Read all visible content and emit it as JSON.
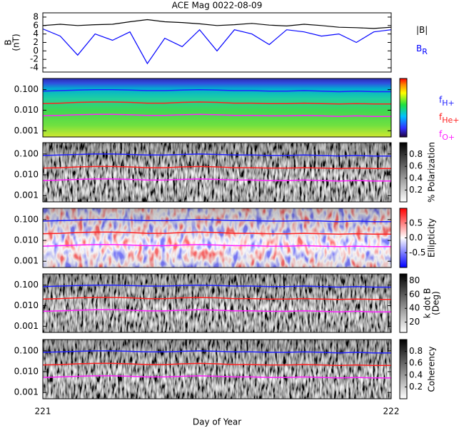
{
  "chart_data": [
    {
      "type": "line",
      "title": "ACE Mag 0022-08-09",
      "ylabel": [
        "B",
        "(nT)"
      ],
      "xlim": [
        221,
        222
      ],
      "ylim": [
        -5,
        9
      ],
      "yticks": [
        -4,
        -2,
        0,
        2,
        4,
        6,
        8
      ],
      "x": [
        221,
        221.05,
        221.1,
        221.15,
        221.2,
        221.25,
        221.3,
        221.35,
        221.4,
        221.45,
        221.5,
        221.55,
        221.6,
        221.65,
        221.7,
        221.75,
        221.8,
        221.85,
        221.9,
        221.95,
        222
      ],
      "series": [
        {
          "name": "|B|",
          "color": "#000000",
          "values": [
            6.0,
            6.3,
            6.0,
            6.2,
            6.3,
            6.9,
            7.4,
            6.9,
            6.7,
            6.4,
            6.0,
            6.2,
            6.5,
            6.1,
            5.9,
            6.3,
            6.0,
            5.6,
            5.5,
            5.3,
            5.6
          ]
        },
        {
          "name": "B",
          "name_sub": "R",
          "color": "#0000ff",
          "values": [
            5.2,
            3.5,
            -1.0,
            4.0,
            2.5,
            4.5,
            -3.0,
            3.0,
            1.0,
            5.0,
            0.0,
            5.0,
            4.0,
            1.5,
            5.0,
            4.5,
            3.5,
            4.0,
            2.0,
            4.5,
            5.0
          ]
        }
      ]
    },
    {
      "type": "spectrogram",
      "colormap": "rainbow",
      "log_y": true,
      "xlim": [
        221,
        222
      ],
      "ylim": [
        0.0005,
        0.35
      ],
      "yticks": [
        0.001,
        {
          "value": 0.01,
          "label": "0.010"
        },
        {
          "value": 0.1,
          "label": "0.100"
        }
      ],
      "x": [
        221,
        221.05,
        221.1,
        221.15,
        221.2,
        221.25,
        221.3,
        221.35,
        221.4,
        221.45,
        221.5,
        221.55,
        221.6,
        221.65,
        221.7,
        221.75,
        221.8,
        221.85,
        221.9,
        221.95,
        222
      ],
      "series": [
        {
          "name": "f",
          "name_sub": "H+",
          "color": "#2020ff",
          "values": [
            0.085,
            0.09,
            0.095,
            0.1,
            0.1,
            0.095,
            0.09,
            0.09,
            0.095,
            0.1,
            0.095,
            0.09,
            0.09,
            0.085,
            0.085,
            0.09,
            0.085,
            0.08,
            0.085,
            0.08,
            0.08
          ]
        },
        {
          "name": "f",
          "name_sub": "He+",
          "color": "#ff2020",
          "values": [
            0.021,
            0.022,
            0.024,
            0.025,
            0.025,
            0.024,
            0.022,
            0.022,
            0.024,
            0.025,
            0.024,
            0.022,
            0.022,
            0.021,
            0.021,
            0.022,
            0.021,
            0.02,
            0.021,
            0.02,
            0.02
          ]
        },
        {
          "name": "f",
          "name_sub": "O+",
          "color": "#ff20ff",
          "values": [
            0.0053,
            0.0056,
            0.006,
            0.0063,
            0.0063,
            0.006,
            0.0056,
            0.0056,
            0.006,
            0.0063,
            0.006,
            0.0056,
            0.0056,
            0.0053,
            0.0053,
            0.0056,
            0.0053,
            0.005,
            0.0053,
            0.005,
            0.005
          ]
        }
      ]
    },
    {
      "type": "spectrogram",
      "colormap": "gray",
      "log_y": true,
      "xlim": [
        221,
        222
      ],
      "ylim": [
        0.0005,
        0.35
      ],
      "yticks": [
        0.001,
        {
          "value": 0.01,
          "label": "0.010"
        },
        {
          "value": 0.1,
          "label": "0.100"
        }
      ],
      "zlabel": "% Polarization",
      "zlim": [
        0,
        1
      ],
      "zticks": [
        0.2,
        0.4,
        0.6,
        0.8
      ],
      "x": [
        221,
        221.05,
        221.1,
        221.15,
        221.2,
        221.25,
        221.3,
        221.35,
        221.4,
        221.45,
        221.5,
        221.55,
        221.6,
        221.65,
        221.7,
        221.75,
        221.8,
        221.85,
        221.9,
        221.95,
        222
      ],
      "series": [
        {
          "color": "#2020ff",
          "values": [
            0.085,
            0.09,
            0.095,
            0.1,
            0.1,
            0.095,
            0.09,
            0.09,
            0.095,
            0.1,
            0.095,
            0.09,
            0.09,
            0.085,
            0.085,
            0.09,
            0.085,
            0.08,
            0.085,
            0.08,
            0.08
          ]
        },
        {
          "color": "#ff2020",
          "values": [
            0.021,
            0.022,
            0.024,
            0.025,
            0.025,
            0.024,
            0.022,
            0.022,
            0.024,
            0.025,
            0.024,
            0.022,
            0.022,
            0.021,
            0.021,
            0.022,
            0.021,
            0.02,
            0.021,
            0.02,
            0.02
          ]
        },
        {
          "color": "#ff20ff",
          "values": [
            0.0053,
            0.0056,
            0.006,
            0.0063,
            0.0063,
            0.006,
            0.0056,
            0.0056,
            0.006,
            0.0063,
            0.006,
            0.0056,
            0.0056,
            0.0053,
            0.0053,
            0.0056,
            0.0053,
            0.005,
            0.0053,
            0.005,
            0.005
          ]
        }
      ]
    },
    {
      "type": "spectrogram",
      "colormap": "bwr",
      "log_y": true,
      "xlim": [
        221,
        222
      ],
      "ylim": [
        0.0005,
        0.35
      ],
      "yticks": [
        0.001,
        {
          "value": 0.01,
          "label": "0.010"
        },
        {
          "value": 0.1,
          "label": "0.100"
        }
      ],
      "zlabel": "Ellipticity",
      "zlim": [
        -1,
        1
      ],
      "zticks": [
        -0.5,
        {
          "value": 0,
          "label": "0.0"
        },
        0.5
      ],
      "x": [
        221,
        221.05,
        221.1,
        221.15,
        221.2,
        221.25,
        221.3,
        221.35,
        221.4,
        221.45,
        221.5,
        221.55,
        221.6,
        221.65,
        221.7,
        221.75,
        221.8,
        221.85,
        221.9,
        221.95,
        222
      ],
      "series": [
        {
          "color": "#2020ff",
          "values": [
            0.085,
            0.09,
            0.095,
            0.1,
            0.1,
            0.095,
            0.09,
            0.09,
            0.095,
            0.1,
            0.095,
            0.09,
            0.09,
            0.085,
            0.085,
            0.09,
            0.085,
            0.08,
            0.085,
            0.08,
            0.08
          ]
        },
        {
          "color": "#ff2020",
          "values": [
            0.021,
            0.022,
            0.024,
            0.025,
            0.025,
            0.024,
            0.022,
            0.022,
            0.024,
            0.025,
            0.024,
            0.022,
            0.022,
            0.021,
            0.021,
            0.022,
            0.021,
            0.02,
            0.021,
            0.02,
            0.02
          ]
        },
        {
          "color": "#ff20ff",
          "values": [
            0.0053,
            0.0056,
            0.006,
            0.0063,
            0.0063,
            0.006,
            0.0056,
            0.0056,
            0.006,
            0.0063,
            0.006,
            0.0056,
            0.0056,
            0.0053,
            0.0053,
            0.0056,
            0.0053,
            0.005,
            0.0053,
            0.005,
            0.005
          ]
        }
      ]
    },
    {
      "type": "spectrogram",
      "colormap": "gray",
      "log_y": true,
      "xlim": [
        221,
        222
      ],
      "ylim": [
        0.0005,
        0.35
      ],
      "yticks": [
        0.001,
        {
          "value": 0.01,
          "label": "0.010"
        },
        {
          "value": 0.1,
          "label": "0.100"
        }
      ],
      "zlabel": [
        "k dot B",
        "(Deg)"
      ],
      "zlim": [
        5,
        90
      ],
      "zticks": [
        20,
        40,
        60,
        80
      ],
      "x": [
        221,
        221.05,
        221.1,
        221.15,
        221.2,
        221.25,
        221.3,
        221.35,
        221.4,
        221.45,
        221.5,
        221.55,
        221.6,
        221.65,
        221.7,
        221.75,
        221.8,
        221.85,
        221.9,
        221.95,
        222
      ],
      "series": [
        {
          "color": "#2020ff",
          "values": [
            0.085,
            0.09,
            0.095,
            0.1,
            0.1,
            0.095,
            0.09,
            0.09,
            0.095,
            0.1,
            0.095,
            0.09,
            0.09,
            0.085,
            0.085,
            0.09,
            0.085,
            0.08,
            0.085,
            0.08,
            0.08
          ]
        },
        {
          "color": "#ff2020",
          "values": [
            0.021,
            0.022,
            0.024,
            0.025,
            0.025,
            0.024,
            0.022,
            0.022,
            0.024,
            0.025,
            0.024,
            0.022,
            0.022,
            0.021,
            0.021,
            0.022,
            0.021,
            0.02,
            0.021,
            0.02,
            0.02
          ]
        },
        {
          "color": "#ff20ff",
          "values": [
            0.0053,
            0.0056,
            0.006,
            0.0063,
            0.0063,
            0.006,
            0.0056,
            0.0056,
            0.006,
            0.0063,
            0.006,
            0.0056,
            0.0056,
            0.0053,
            0.0053,
            0.0056,
            0.0053,
            0.005,
            0.0053,
            0.005,
            0.005
          ]
        }
      ]
    },
    {
      "type": "spectrogram",
      "colormap": "gray",
      "log_y": true,
      "xlim": [
        221,
        222
      ],
      "ylim": [
        0.0005,
        0.35
      ],
      "yticks": [
        0.001,
        {
          "value": 0.01,
          "label": "0.010"
        },
        {
          "value": 0.1,
          "label": "0.100"
        }
      ],
      "zlabel": "Coherency",
      "zlim": [
        0,
        1
      ],
      "zticks": [
        0.2,
        0.4,
        0.6,
        0.8
      ],
      "xticks": [
        221,
        222
      ],
      "xlabel": "Day of Year",
      "x": [
        221,
        221.05,
        221.1,
        221.15,
        221.2,
        221.25,
        221.3,
        221.35,
        221.4,
        221.45,
        221.5,
        221.55,
        221.6,
        221.65,
        221.7,
        221.75,
        221.8,
        221.85,
        221.9,
        221.95,
        222
      ],
      "series": [
        {
          "color": "#2020ff",
          "values": [
            0.085,
            0.09,
            0.095,
            0.1,
            0.1,
            0.095,
            0.09,
            0.09,
            0.095,
            0.1,
            0.095,
            0.09,
            0.09,
            0.085,
            0.085,
            0.09,
            0.085,
            0.08,
            0.085,
            0.08,
            0.08
          ]
        },
        {
          "color": "#ff2020",
          "values": [
            0.021,
            0.022,
            0.024,
            0.025,
            0.025,
            0.024,
            0.022,
            0.022,
            0.024,
            0.025,
            0.024,
            0.022,
            0.022,
            0.021,
            0.021,
            0.022,
            0.021,
            0.02,
            0.021,
            0.02,
            0.02
          ]
        },
        {
          "color": "#ff20ff",
          "values": [
            0.0053,
            0.0056,
            0.006,
            0.0063,
            0.0063,
            0.006,
            0.0056,
            0.0056,
            0.006,
            0.0063,
            0.006,
            0.0056,
            0.0056,
            0.0053,
            0.0053,
            0.0056,
            0.0053,
            0.005,
            0.0053,
            0.005,
            0.005
          ]
        }
      ]
    }
  ]
}
